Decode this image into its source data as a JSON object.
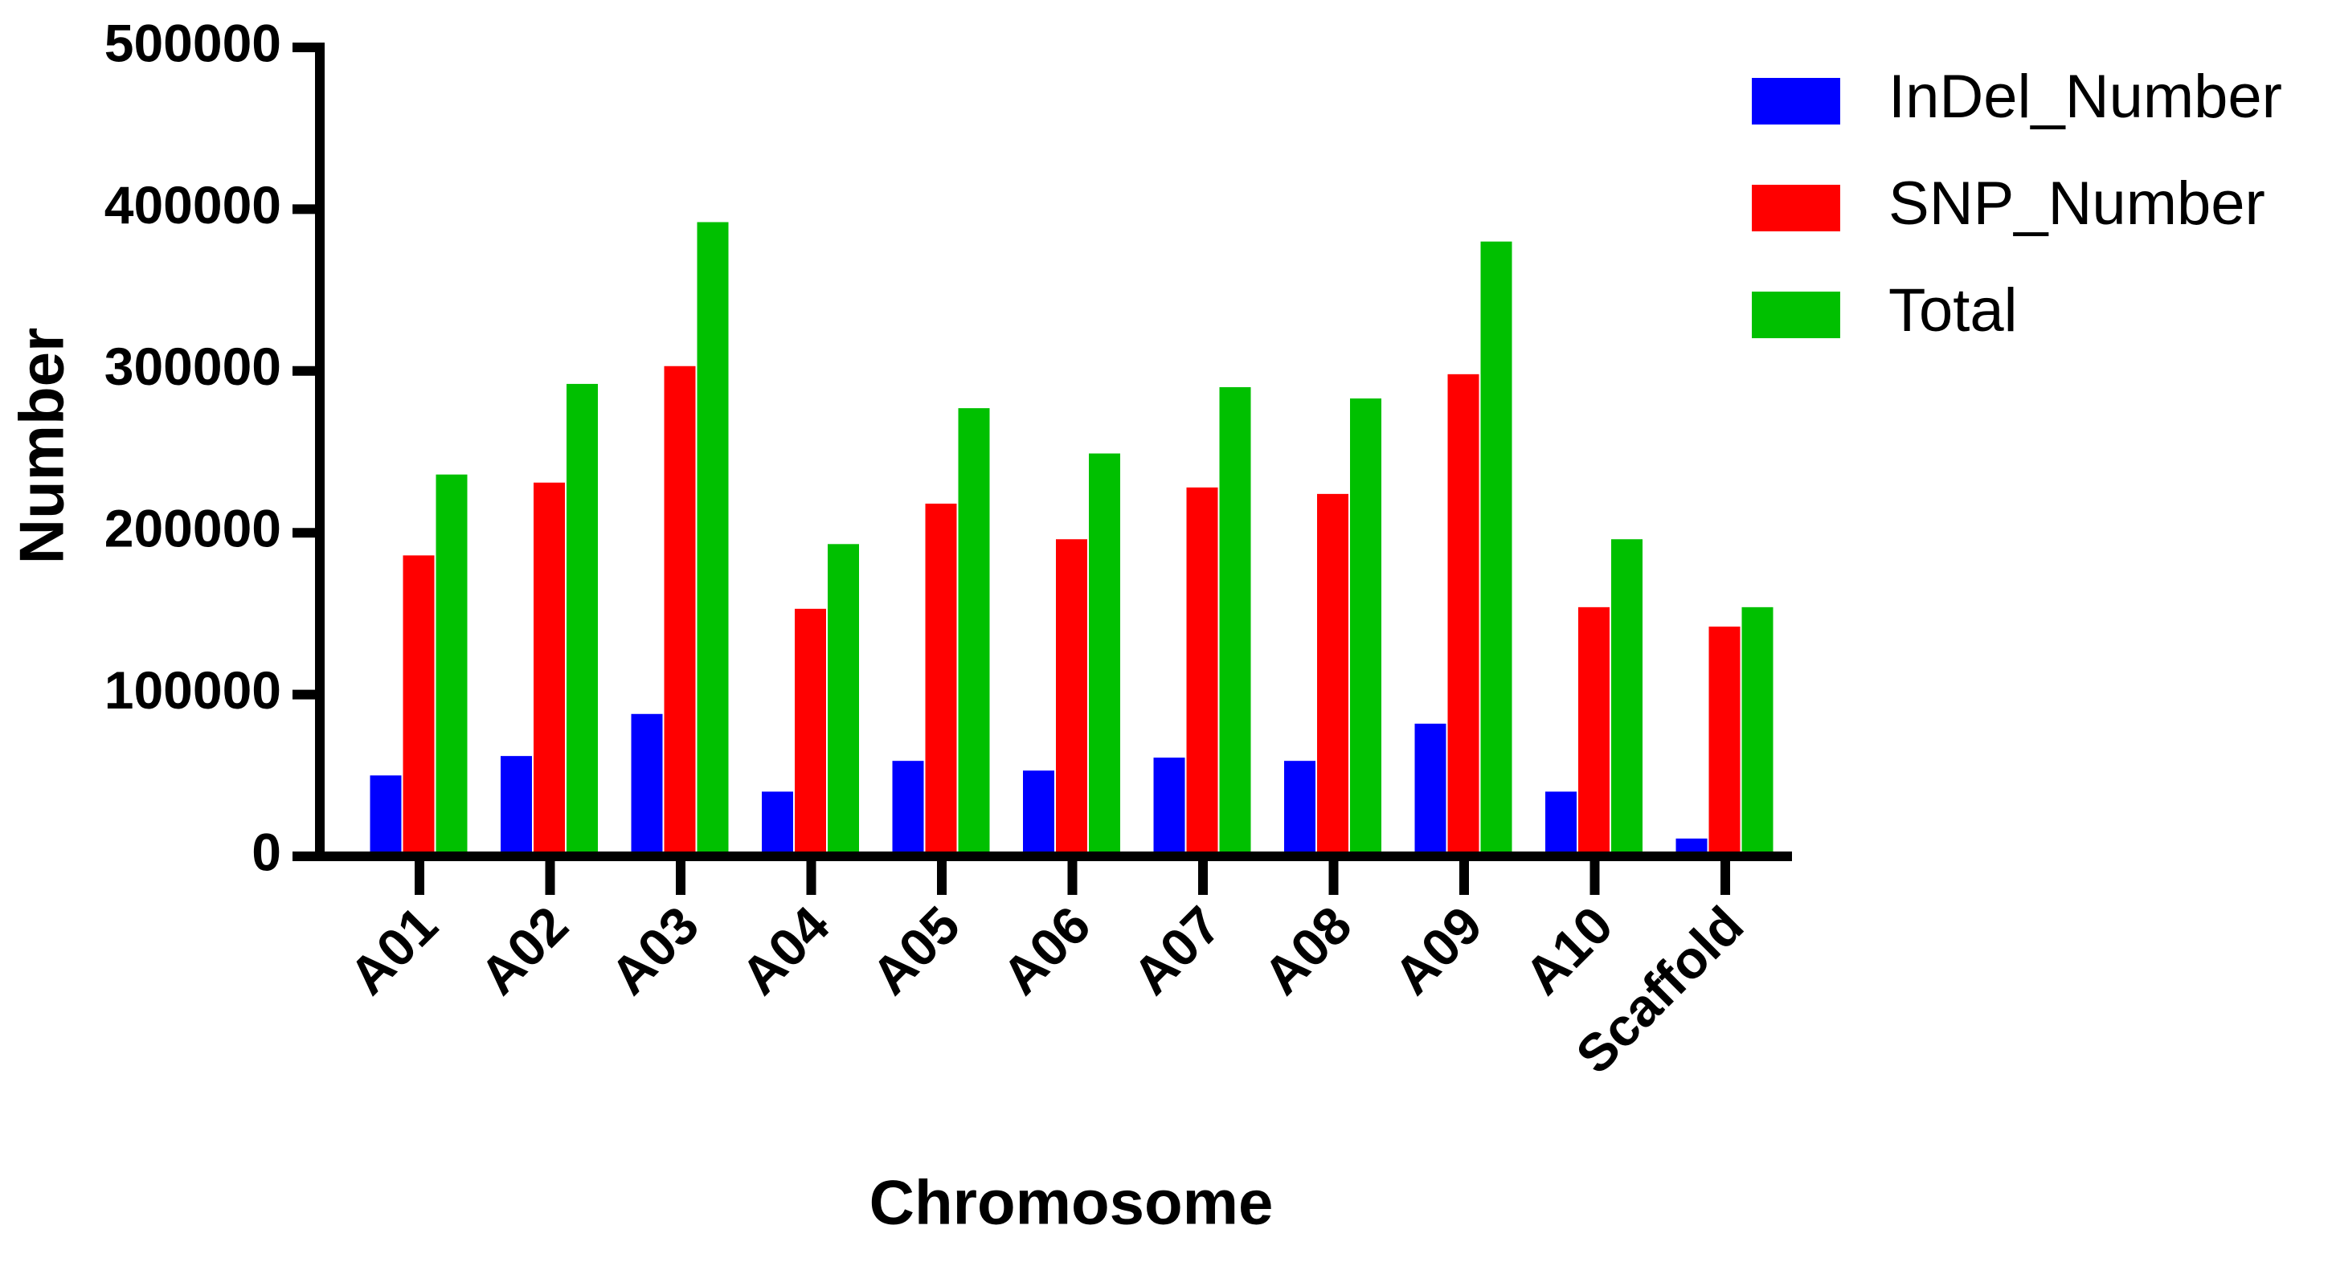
{
  "chart_data": {
    "type": "bar",
    "x_label": "Chromosome",
    "y_label": "Number",
    "categories": [
      "A01",
      "A02",
      "A03",
      "A04",
      "A05",
      "A06",
      "A07",
      "A08",
      "A09",
      "A10",
      "Scaffold"
    ],
    "series": [
      {
        "name": "InDel_Number",
        "color": "#0000ff",
        "values": [
          50000,
          62000,
          88000,
          40000,
          59000,
          53000,
          61000,
          59000,
          82000,
          40000,
          11000
        ]
      },
      {
        "name": "SNP_Number",
        "color": "#ff0000",
        "values": [
          186000,
          231000,
          303000,
          153000,
          218000,
          196000,
          228000,
          224000,
          298000,
          154000,
          142000
        ]
      },
      {
        "name": "Total",
        "color": "#00c000",
        "values": [
          236000,
          292000,
          392000,
          193000,
          277000,
          249000,
          290000,
          283000,
          380000,
          196000,
          154000
        ]
      }
    ],
    "ylim": [
      0,
      500000
    ],
    "yticks": [
      0,
      100000,
      200000,
      300000,
      400000,
      500000
    ],
    "legend": "upper right"
  }
}
